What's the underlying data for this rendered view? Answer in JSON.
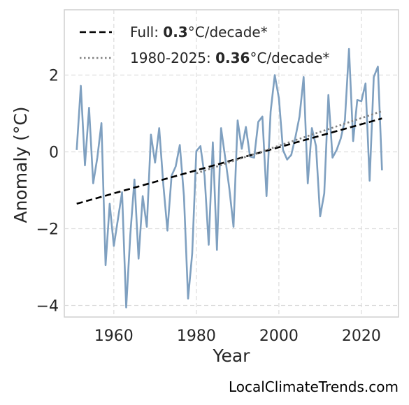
{
  "chart_data": {
    "type": "line",
    "title": "",
    "xlabel": "Year",
    "ylabel": "Anomaly (°C)",
    "xlim": [
      1948,
      2029
    ],
    "ylim": [
      -4.3,
      3.7
    ],
    "xticks": [
      1960,
      1980,
      2000,
      2020
    ],
    "yticks": [
      -4,
      -2,
      0,
      2
    ],
    "ytick_labels": [
      "−4",
      "−2",
      "0",
      "2"
    ],
    "grid": true,
    "legend_position": "top-left",
    "x": [
      1951,
      1952,
      1953,
      1954,
      1955,
      1956,
      1957,
      1958,
      1959,
      1960,
      1961,
      1962,
      1963,
      1964,
      1965,
      1966,
      1967,
      1968,
      1969,
      1970,
      1971,
      1972,
      1973,
      1974,
      1975,
      1976,
      1977,
      1978,
      1979,
      1980,
      1981,
      1982,
      1983,
      1984,
      1985,
      1986,
      1987,
      1988,
      1989,
      1990,
      1991,
      1992,
      1993,
      1994,
      1995,
      1996,
      1997,
      1998,
      1999,
      2000,
      2001,
      2002,
      2003,
      2004,
      2005,
      2006,
      2007,
      2008,
      2009,
      2010,
      2011,
      2012,
      2013,
      2014,
      2015,
      2016,
      2017,
      2018,
      2019,
      2020,
      2021,
      2022,
      2023,
      2024,
      2025
    ],
    "series": [
      {
        "role": "data",
        "color": "#7fa0c0",
        "values": [
          0.05,
          1.72,
          -0.35,
          1.15,
          -0.82,
          -0.15,
          0.75,
          -2.95,
          -1.35,
          -2.45,
          -1.75,
          -1.05,
          -4.05,
          -2.15,
          -0.72,
          -2.78,
          -1.15,
          -1.95,
          0.45,
          -0.28,
          0.62,
          -0.85,
          -2.05,
          -0.62,
          -0.38,
          0.18,
          -1.15,
          -3.82,
          -2.65,
          0.02,
          0.15,
          -0.62,
          -2.42,
          0.25,
          -2.55,
          0.62,
          -0.15,
          -0.95,
          -1.95,
          0.82,
          0.08,
          0.65,
          -0.12,
          -0.15,
          0.78,
          0.92,
          -1.15,
          1.05,
          2.0,
          1.4,
          0.05,
          -0.2,
          -0.08,
          0.38,
          0.92,
          1.95,
          -0.82,
          0.62,
          0.15,
          -1.68,
          -1.08,
          1.48,
          -0.15,
          0.05,
          0.35,
          0.82,
          2.68,
          0.28,
          1.35,
          1.32,
          1.78,
          -0.75,
          1.95,
          2.22,
          -0.48
        ]
      },
      {
        "role": "trend",
        "name": "Full",
        "color": "#000000",
        "dash": "dashed",
        "x": [
          1951,
          2025
        ],
        "values": [
          -1.35,
          0.87
        ]
      },
      {
        "role": "trend",
        "name": "1980-2025",
        "color": "#808080",
        "dash": "dotted",
        "x": [
          1980,
          2025
        ],
        "values": [
          -0.56,
          1.06
        ]
      }
    ],
    "legend": [
      {
        "prefix": "Full: ",
        "value": "0.3",
        "suffix": "°C/decade*"
      },
      {
        "prefix": "1980-2025: ",
        "value": "0.36",
        "suffix": "°C/decade*"
      }
    ]
  },
  "footer": {
    "source": "LocalClimateTrends.com"
  }
}
